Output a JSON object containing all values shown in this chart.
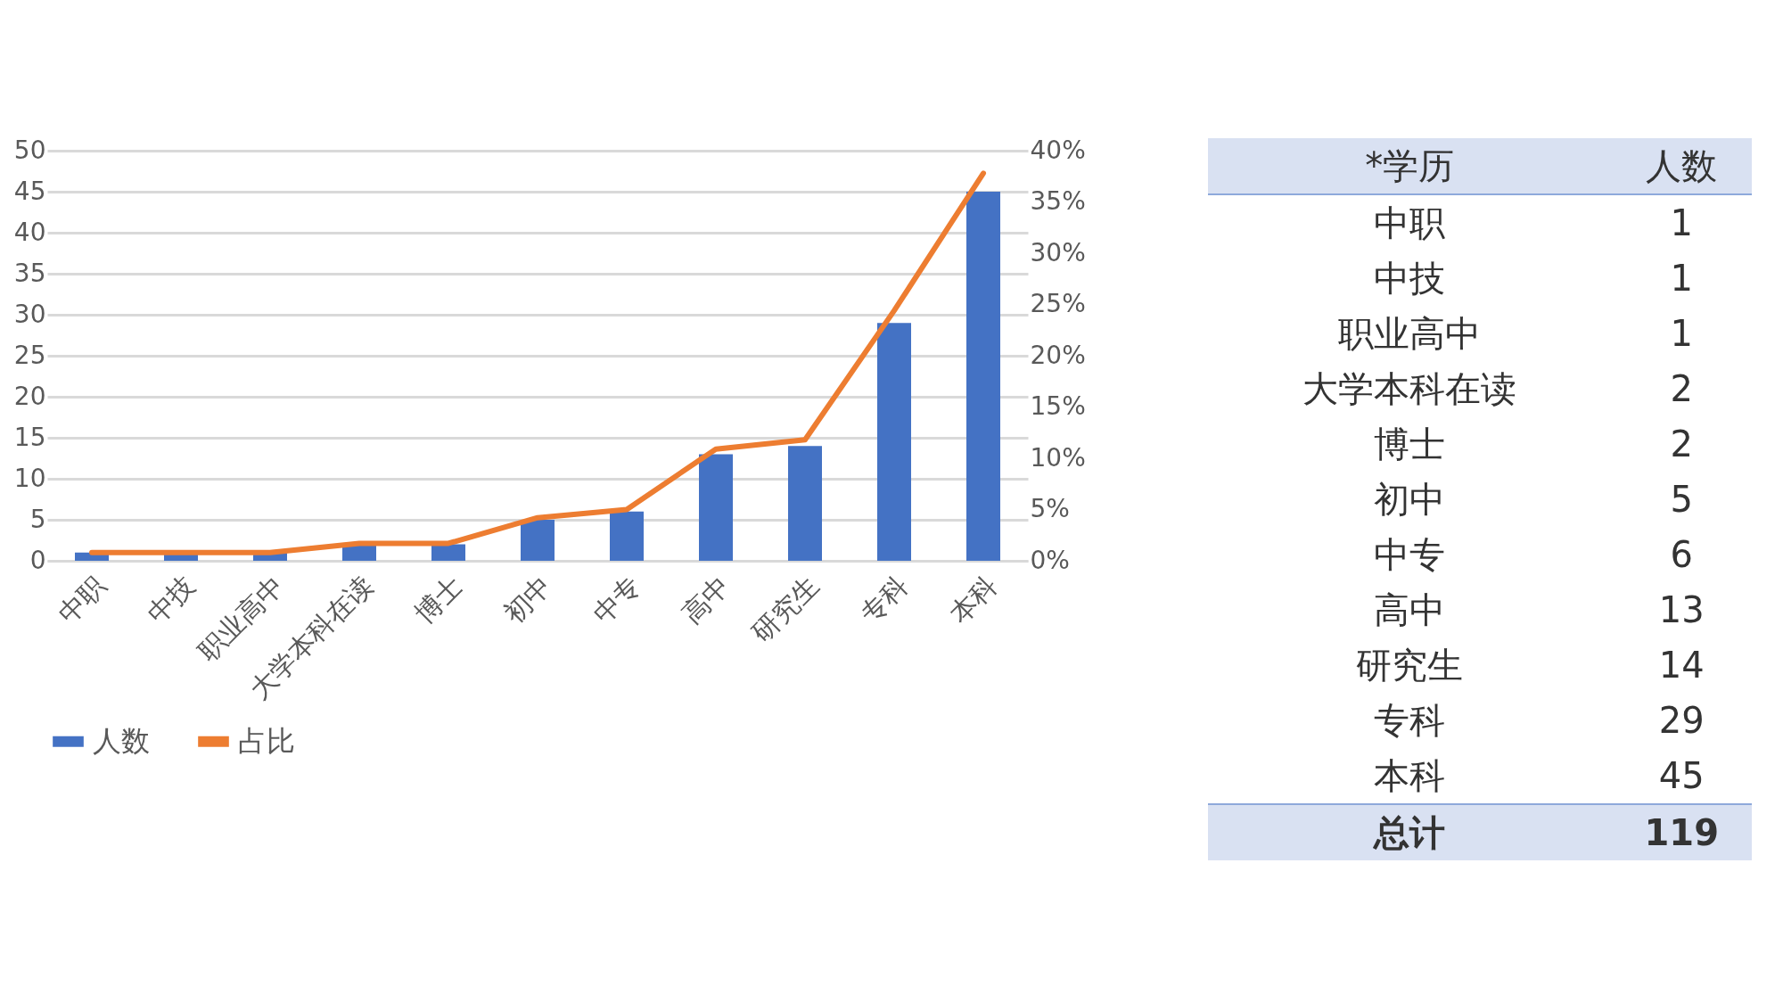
{
  "chart_data": [
    {
      "type": "bar",
      "categories": [
        "中职",
        "中技",
        "职业高中",
        "大学本科在读",
        "博士",
        "初中",
        "中专",
        "高中",
        "研究生",
        "专科",
        "本科"
      ],
      "series": [
        {
          "name": "人数",
          "type": "bar",
          "color": "#4472c4",
          "values": [
            1,
            1,
            1,
            2,
            2,
            5,
            6,
            13,
            14,
            29,
            45
          ]
        },
        {
          "name": "占比",
          "type": "line",
          "axis": "y2",
          "color": "#ed7d31",
          "values": [
            0.8,
            0.8,
            0.8,
            1.7,
            1.7,
            4.2,
            5.0,
            10.9,
            11.8,
            24.4,
            37.8
          ]
        }
      ],
      "ylim": [
        0,
        50
      ],
      "yticks": [
        0,
        5,
        10,
        15,
        20,
        25,
        30,
        35,
        40,
        45,
        50
      ],
      "y2lim": [
        0,
        40
      ],
      "y2ticks": [
        {
          "value": 0,
          "label": "0%"
        },
        {
          "value": 5,
          "label": "5%"
        },
        {
          "value": 10,
          "label": "10%"
        },
        {
          "value": 15,
          "label": "15%"
        },
        {
          "value": 20,
          "label": "20%"
        },
        {
          "value": 25,
          "label": "25%"
        },
        {
          "value": 30,
          "label": "30%"
        },
        {
          "value": 35,
          "label": "35%"
        },
        {
          "value": 40,
          "label": "40%"
        }
      ],
      "grid": "y",
      "legend": "bottom",
      "marker": "none",
      "line_style": "solid"
    },
    {
      "type": "other",
      "xlabel": "*学历",
      "categories": [
        "中职",
        "中技",
        "职业高中",
        "大学本科在读",
        "博士",
        "初中",
        "中专",
        "高中",
        "研究生",
        "专科",
        "本科"
      ],
      "series": [
        {
          "name": "人数",
          "values": [
            1,
            1,
            1,
            2,
            2,
            5,
            6,
            13,
            14,
            29,
            45
          ]
        }
      ],
      "data_labels": true,
      "annotations": [
        "总计",
        "119"
      ]
    }
  ]
}
